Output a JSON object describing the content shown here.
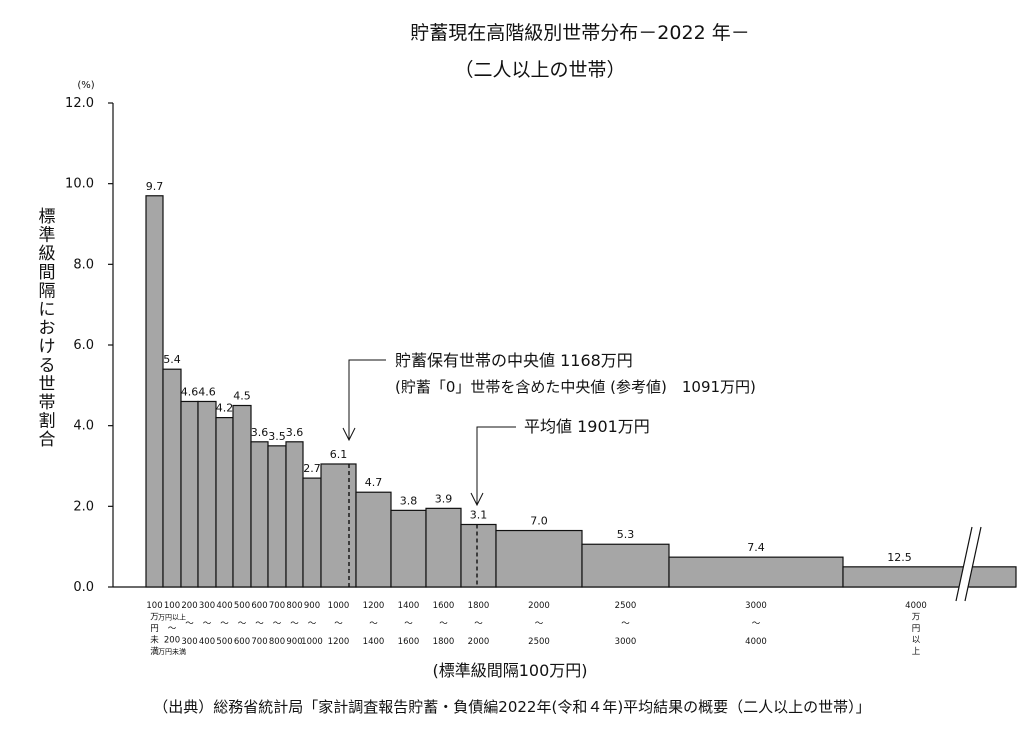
{
  "chart_data": {
    "type": "bar",
    "title": "貯蓄現在高階級別世帯分布－2022 年－",
    "subtitle": "（二人以上の世帯）",
    "ylabel": "標準級間隔における世帯割合",
    "y_unit": "(%)",
    "xlabel": "(標準級間隔100万円)",
    "ylim": [
      0,
      12
    ],
    "yticks": [
      "0.0",
      "2.0",
      "4.0",
      "6.0",
      "8.0",
      "10.0",
      "12.0"
    ],
    "grid": false,
    "value_labels": [
      "9.7",
      "5.4",
      "4.6",
      "4.6",
      "4.2",
      "4.5",
      "3.6",
      "3.5",
      "3.6",
      "2.7",
      "6.1",
      "4.7",
      "3.8",
      "3.9",
      "3.1",
      "7.0",
      "5.3",
      "7.4",
      "12.5"
    ],
    "bar_heights_per_100man": [
      9.7,
      5.4,
      4.6,
      4.6,
      4.2,
      4.5,
      3.6,
      3.5,
      3.6,
      2.7,
      3.05,
      2.35,
      1.9,
      1.95,
      1.55,
      1.4,
      1.06,
      0.74,
      0.5
    ],
    "bin_edges_man_yen": [
      0,
      100,
      200,
      300,
      400,
      500,
      600,
      700,
      800,
      900,
      1000,
      1200,
      1400,
      1600,
      1800,
      2000,
      2500,
      3000,
      4000
    ],
    "open_top_bin": {
      "from": 4000,
      "label": "4000万円以上"
    },
    "category_labels": [
      [
        "100",
        "万",
        "円",
        "未",
        "満"
      ],
      [
        "100",
        "万円以上",
        "〜",
        "200",
        "万円未満"
      ],
      [
        "200",
        "〜",
        "300"
      ],
      [
        "300",
        "〜",
        "400"
      ],
      [
        "400",
        "〜",
        "500"
      ],
      [
        "500",
        "〜",
        "600"
      ],
      [
        "600",
        "〜",
        "700"
      ],
      [
        "700",
        "〜",
        "800"
      ],
      [
        "800",
        "〜",
        "900"
      ],
      [
        "900",
        "〜",
        "1000"
      ],
      [
        "1000",
        "〜",
        "1200"
      ],
      [
        "1200",
        "〜",
        "1400"
      ],
      [
        "1400",
        "〜",
        "1600"
      ],
      [
        "1600",
        "〜",
        "1800"
      ],
      [
        "1800",
        "〜",
        "2000"
      ],
      [
        "2000",
        "〜",
        "2500"
      ],
      [
        "2500",
        "〜",
        "3000"
      ],
      [
        "3000",
        "〜",
        "4000"
      ],
      [
        "4000",
        "万",
        "円",
        "以",
        "上"
      ]
    ],
    "median_annotation": {
      "value_man_yen": 1168,
      "line1": "貯蓄保有世帯の中央値 1168万円",
      "line2": "(貯蓄「0」世帯を含めた中央値 (参考値)　1091万円)"
    },
    "mean_annotation": {
      "value_man_yen": 1901,
      "line1": "平均値 1901万円"
    },
    "bar_color": "#a6a6a6",
    "bar_stroke": "#111111"
  },
  "source_note": "（出典）総務省統計局「家計調査報告貯蓄・負債編2022年(令和４年)平均結果の概要（二人以上の世帯）」"
}
